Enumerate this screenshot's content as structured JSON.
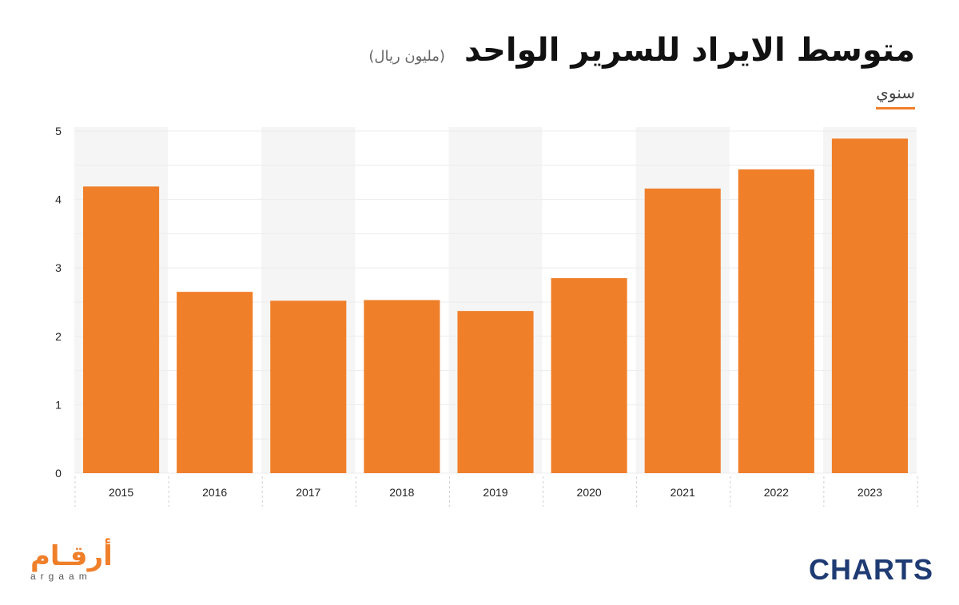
{
  "header": {
    "title": "متوسط الايراد للسرير الواحد",
    "subtitle": "(مليون ريال)",
    "period": "سنوي"
  },
  "colors": {
    "bar": "#f07f2a",
    "band": "#f5f5f5",
    "grid": "#ececec"
  },
  "chart_data": {
    "type": "bar",
    "categories": [
      "2015",
      "2016",
      "2017",
      "2018",
      "2019",
      "2020",
      "2021",
      "2022",
      "2023"
    ],
    "values": [
      4.19,
      2.65,
      2.52,
      2.53,
      2.37,
      2.85,
      4.16,
      4.44,
      4.89
    ],
    "ylim": [
      0,
      5
    ],
    "yticks": [
      0,
      1,
      2,
      3,
      4,
      5
    ],
    "grid": true,
    "title": "متوسط الايراد للسرير الواحد",
    "xlabel": "",
    "ylabel": ""
  },
  "footer": {
    "brand_ar": "أرقـام",
    "brand_en": "argaam",
    "charts_logo": "CHARTS"
  }
}
